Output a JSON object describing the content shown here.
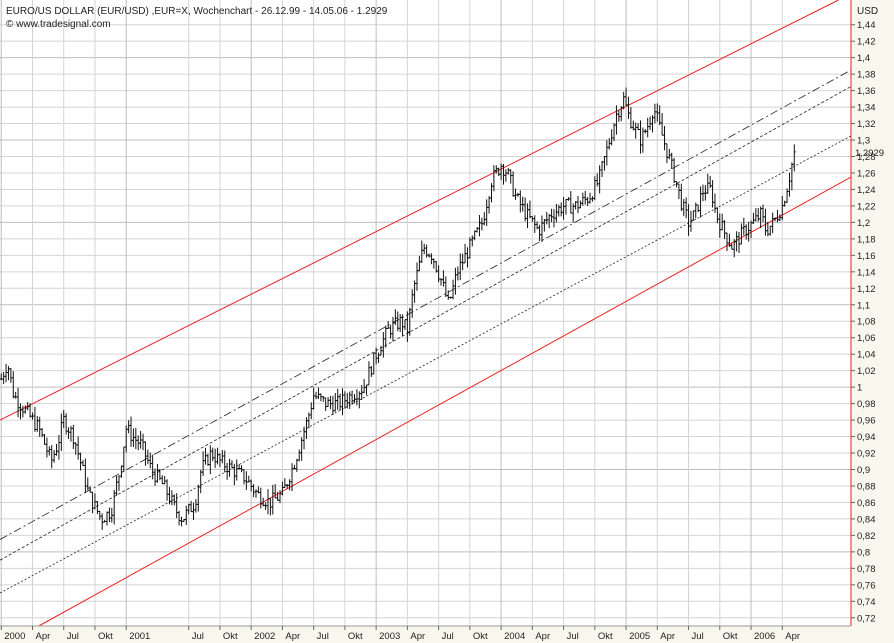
{
  "header": {
    "title": "EURO/US DOLLAR (EUR/USD) ,EUR=X, Wochenchart - 26.12.99 - 14.05.06 - 1.2929",
    "source": "© www.tradesignal.com",
    "unit": "USD",
    "last_price_label": "1,2929"
  },
  "chart_data": {
    "type": "line",
    "style": "weekly OHLC bars with regression channel",
    "title": "EURO/US DOLLAR (EUR/USD) ,EUR=X, Wochenchart - 26.12.99 - 14.05.06 - 1.2929",
    "ylabel": "USD",
    "ylim": [
      0.71,
      1.47
    ],
    "yticks": [
      "1,44",
      "1,42",
      "1,4",
      "1,38",
      "1,36",
      "1,34",
      "1,32",
      "1,3",
      "1,28",
      "1,26",
      "1,24",
      "1,22",
      "1,2",
      "1,18",
      "1,16",
      "1,14",
      "1,12",
      "1,1",
      "1,08",
      "1,06",
      "1,04",
      "1,02",
      "1",
      "0,98",
      "0,96",
      "0,94",
      "0,92",
      "0,9",
      "0,88",
      "0,86",
      "0,84",
      "0,82",
      "0,8",
      "0,78",
      "0,76",
      "0,74",
      "0,72"
    ],
    "xticks": [
      {
        "label": "2000",
        "t": 2000.0
      },
      {
        "label": "Apr",
        "t": 2000.25
      },
      {
        "label": "Jul",
        "t": 2000.5
      },
      {
        "label": "Okt",
        "t": 2000.75
      },
      {
        "label": "2001",
        "t": 2001.0
      },
      {
        "label": "Jul",
        "t": 2001.5
      },
      {
        "label": "Okt",
        "t": 2001.75
      },
      {
        "label": "2002",
        "t": 2002.0
      },
      {
        "label": "Apr",
        "t": 2002.25
      },
      {
        "label": "Jul",
        "t": 2002.5
      },
      {
        "label": "Okt",
        "t": 2002.75
      },
      {
        "label": "2003",
        "t": 2003.0
      },
      {
        "label": "Apr",
        "t": 2003.25
      },
      {
        "label": "Jul",
        "t": 2003.5
      },
      {
        "label": "Okt",
        "t": 2003.75
      },
      {
        "label": "2004",
        "t": 2004.0
      },
      {
        "label": "Apr",
        "t": 2004.25
      },
      {
        "label": "Jul",
        "t": 2004.5
      },
      {
        "label": "Okt",
        "t": 2004.75
      },
      {
        "label": "2005",
        "t": 2005.0
      },
      {
        "label": "Apr",
        "t": 2005.25
      },
      {
        "label": "Jul",
        "t": 2005.5
      },
      {
        "label": "Okt",
        "t": 2005.75
      },
      {
        "label": "2006",
        "t": 2006.0
      },
      {
        "label": "Apr",
        "t": 2006.25
      }
    ],
    "x_range": [
      1999.99,
      2006.8
    ],
    "grid": true,
    "price_path": [
      [
        2000.0,
        1.01
      ],
      [
        2000.05,
        1.03
      ],
      [
        2000.1,
        0.99
      ],
      [
        2000.2,
        0.97
      ],
      [
        2000.3,
        0.95
      ],
      [
        2000.4,
        0.91
      ],
      [
        2000.45,
        0.93
      ],
      [
        2000.5,
        0.96
      ],
      [
        2000.58,
        0.94
      ],
      [
        2000.65,
        0.9
      ],
      [
        2000.7,
        0.87
      ],
      [
        2000.8,
        0.84
      ],
      [
        2000.88,
        0.85
      ],
      [
        2000.95,
        0.9
      ],
      [
        2001.0,
        0.95
      ],
      [
        2001.05,
        0.94
      ],
      [
        2001.12,
        0.93
      ],
      [
        2001.2,
        0.9
      ],
      [
        2001.3,
        0.88
      ],
      [
        2001.4,
        0.85
      ],
      [
        2001.45,
        0.84
      ],
      [
        2001.55,
        0.86
      ],
      [
        2001.6,
        0.9
      ],
      [
        2001.68,
        0.92
      ],
      [
        2001.75,
        0.91
      ],
      [
        2001.85,
        0.9
      ],
      [
        2001.95,
        0.89
      ],
      [
        2002.05,
        0.87
      ],
      [
        2002.15,
        0.86
      ],
      [
        2002.25,
        0.87
      ],
      [
        2002.35,
        0.91
      ],
      [
        2002.45,
        0.96
      ],
      [
        2002.5,
        0.99
      ],
      [
        2002.6,
        0.98
      ],
      [
        2002.7,
        0.98
      ],
      [
        2002.8,
        0.99
      ],
      [
        2002.9,
        1.0
      ],
      [
        2003.0,
        1.04
      ],
      [
        2003.1,
        1.07
      ],
      [
        2003.2,
        1.08
      ],
      [
        2003.25,
        1.07
      ],
      [
        2003.3,
        1.12
      ],
      [
        2003.38,
        1.17
      ],
      [
        2003.45,
        1.16
      ],
      [
        2003.52,
        1.13
      ],
      [
        2003.58,
        1.1
      ],
      [
        2003.65,
        1.14
      ],
      [
        2003.75,
        1.17
      ],
      [
        2003.85,
        1.2
      ],
      [
        2003.92,
        1.25
      ],
      [
        2004.0,
        1.27
      ],
      [
        2004.05,
        1.26
      ],
      [
        2004.12,
        1.23
      ],
      [
        2004.2,
        1.21
      ],
      [
        2004.3,
        1.19
      ],
      [
        2004.4,
        1.21
      ],
      [
        2004.5,
        1.22
      ],
      [
        2004.6,
        1.22
      ],
      [
        2004.7,
        1.23
      ],
      [
        2004.78,
        1.25
      ],
      [
        2004.85,
        1.29
      ],
      [
        2004.92,
        1.33
      ],
      [
        2004.98,
        1.35
      ],
      [
        2005.02,
        1.33
      ],
      [
        2005.08,
        1.31
      ],
      [
        2005.12,
        1.3
      ],
      [
        2005.18,
        1.32
      ],
      [
        2005.22,
        1.34
      ],
      [
        2005.3,
        1.3
      ],
      [
        2005.38,
        1.26
      ],
      [
        2005.45,
        1.22
      ],
      [
        2005.5,
        1.2
      ],
      [
        2005.55,
        1.21
      ],
      [
        2005.62,
        1.24
      ],
      [
        2005.68,
        1.24
      ],
      [
        2005.72,
        1.21
      ],
      [
        2005.78,
        1.19
      ],
      [
        2005.85,
        1.17
      ],
      [
        2005.9,
        1.18
      ],
      [
        2005.95,
        1.19
      ],
      [
        2006.02,
        1.2
      ],
      [
        2006.08,
        1.21
      ],
      [
        2006.12,
        1.19
      ],
      [
        2006.18,
        1.2
      ],
      [
        2006.25,
        1.22
      ],
      [
        2006.3,
        1.25
      ],
      [
        2006.34,
        1.28
      ],
      [
        2006.36,
        1.2929
      ]
    ],
    "channel": {
      "upper": [
        [
          1999.99,
          0.96
        ],
        [
          2006.7,
          1.47
        ]
      ],
      "lower": [
        [
          2000.3,
          0.71
        ],
        [
          2006.8,
          1.255
        ]
      ],
      "midlines": [
        {
          "style": "dash-dot",
          "points": [
            [
              1999.99,
              0.815
            ],
            [
              2006.8,
              1.385
            ]
          ]
        },
        {
          "style": "dashed",
          "points": [
            [
              1999.99,
              0.79
            ],
            [
              2006.8,
              1.365
            ]
          ]
        },
        {
          "style": "dotted",
          "points": [
            [
              1999.99,
              0.75
            ],
            [
              2006.8,
              1.305
            ]
          ]
        }
      ]
    }
  }
}
